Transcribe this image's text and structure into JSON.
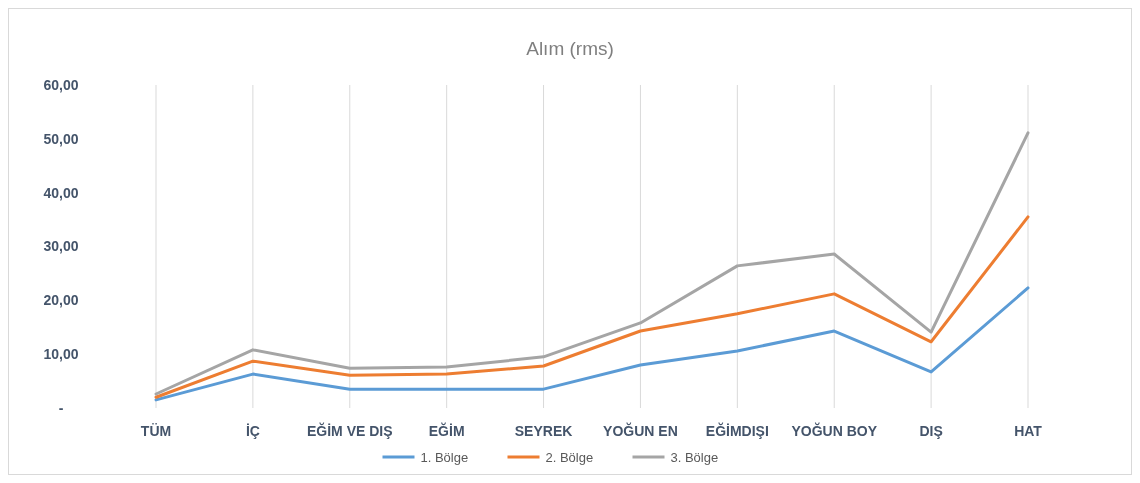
{
  "chart_data": {
    "type": "line",
    "title": "Alım (rms)",
    "categories": [
      "TÜM",
      "İÇ",
      "EĞİM VE DIŞ",
      "EĞİM",
      "SEYREK",
      "YOĞUN EN",
      "EĞİMDIŞI",
      "YOĞUN BOY",
      "DIŞ",
      "HAT"
    ],
    "series": [
      {
        "name": "1. Bölge",
        "color": "#5b9bd5",
        "values": [
          1.5,
          6.3,
          3.5,
          3.5,
          3.5,
          8.0,
          10.6,
          14.3,
          6.7,
          22.3
        ]
      },
      {
        "name": "2. Bölge",
        "color": "#ed7d31",
        "values": [
          2.0,
          8.7,
          6.1,
          6.3,
          7.8,
          14.3,
          17.5,
          21.2,
          12.3,
          35.5
        ]
      },
      {
        "name": "3. Bölge",
        "color": "#a5a5a5",
        "values": [
          2.6,
          10.8,
          7.4,
          7.6,
          9.5,
          15.8,
          26.4,
          28.6,
          14.1,
          51.1
        ]
      }
    ],
    "ylim": [
      0,
      60
    ],
    "yticks": [
      {
        "value": 0,
        "label": "-"
      },
      {
        "value": 10,
        "label": "10,00"
      },
      {
        "value": 20,
        "label": "20,00"
      },
      {
        "value": 30,
        "label": "30,00"
      },
      {
        "value": 40,
        "label": "40,00"
      },
      {
        "value": 50,
        "label": "50,00"
      },
      {
        "value": 60,
        "label": "60,00"
      }
    ],
    "grid": "x",
    "legend": "bottom",
    "marker": "none",
    "line_style": "solid"
  }
}
